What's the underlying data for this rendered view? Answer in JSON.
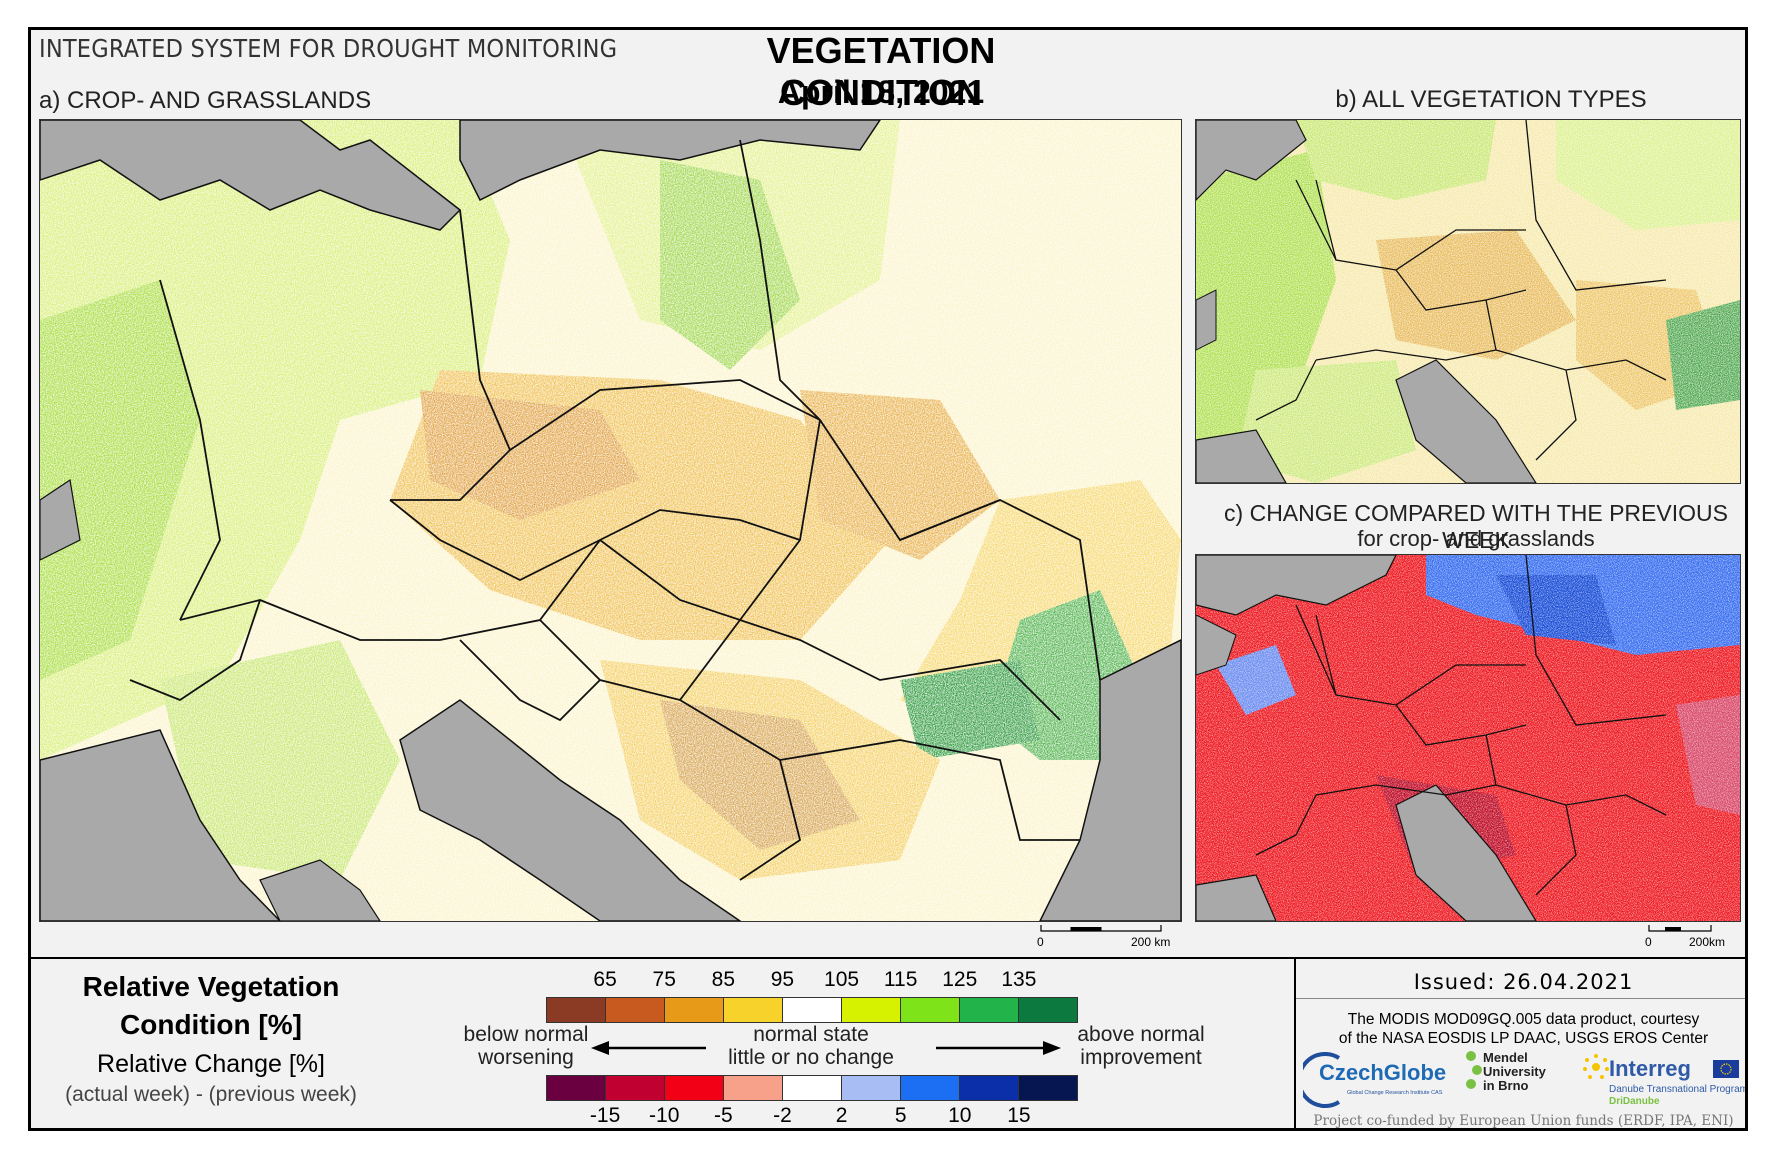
{
  "header": {
    "system_title": "INTEGRATED SYSTEM FOR DROUGHT MONITORING",
    "title": "VEGETATION CONDITION",
    "date": "April 18, 2021"
  },
  "panels": {
    "a": {
      "label": "a) CROP- AND GRASSLANDS",
      "scale_label": "200 km",
      "scale_zero": "0"
    },
    "b": {
      "label": "b) ALL VEGETATION TYPES",
      "scale_label": "200km",
      "scale_zero": "0"
    },
    "c": {
      "label": "c) CHANGE COMPARED WITH THE PREVIOUS WEEK",
      "sublabel": "for crop- and grasslands"
    }
  },
  "legend": {
    "rvc_title": "Relative Vegetation Condition [%]",
    "rc_title": "Relative Change [%]",
    "rc_sub": "(actual week) - (previous week)",
    "rvc_ticks": [
      "65",
      "75",
      "85",
      "95",
      "105",
      "115",
      "125",
      "135"
    ],
    "rvc_colors": [
      "#8b3b24",
      "#c8591f",
      "#e69a17",
      "#f7d22a",
      "#ffffff",
      "#d6f200",
      "#7fe31a",
      "#22b34a",
      "#0c7a3e"
    ],
    "rc_ticks": [
      "-15",
      "-10",
      "-5",
      "-2",
      "2",
      "5",
      "10",
      "15"
    ],
    "rc_colors": [
      "#6a0040",
      "#c00030",
      "#f20016",
      "#f7a08a",
      "#ffffff",
      "#a9bdf5",
      "#1c6ef2",
      "#0a2fa8",
      "#061650"
    ],
    "below_1": "below normal",
    "below_2": "worsening",
    "normal_1": "normal state",
    "normal_2": "little or no change",
    "above_1": "above normal",
    "above_2": "improvement"
  },
  "footer": {
    "issued": "Issued: 26.04.2021",
    "credit_1": "The MODIS MOD09GQ.005 data product, courtesy",
    "credit_2": "of the NASA EOSDIS LP DAAC, USGS EROS Center",
    "logo_czechglobe": "CzechGlobe",
    "logo_czechglobe_sub": "Global Change Research Institute CAS",
    "logo_mendel_1": "Mendel",
    "logo_mendel_2": "University",
    "logo_mendel_3": "in Brno",
    "logo_interreg": "Interreg",
    "logo_interreg_sub": "Danube Transnational Programme",
    "logo_dridanube": "DriDanube",
    "funding": "Project co-funded by European Union funds (ERDF, IPA, ENI)"
  },
  "colors": {
    "sea": "#a9a9a9",
    "border": "#111111"
  }
}
